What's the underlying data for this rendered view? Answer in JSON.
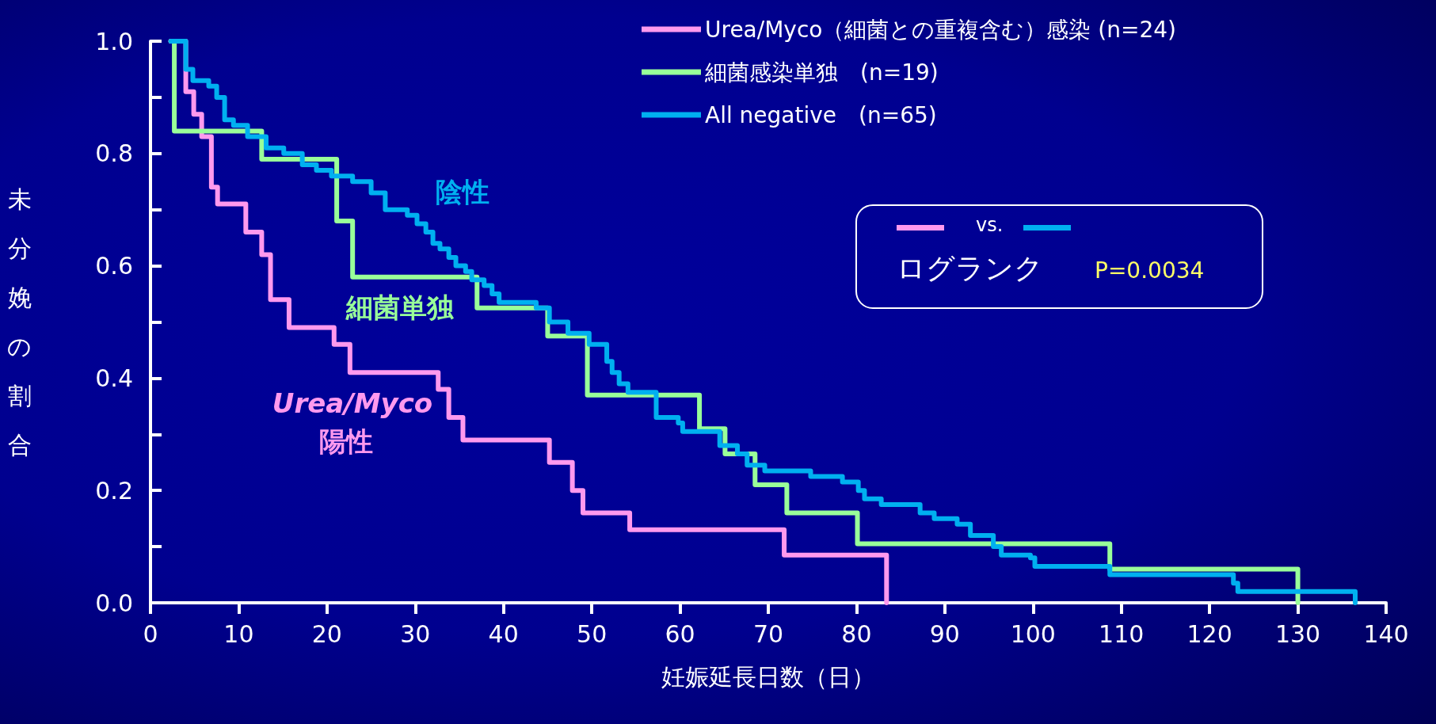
{
  "chart_data": {
    "type": "step",
    "xlabel": "妊娠延長日数（日）",
    "ylabel": "未分娩の割合",
    "xlim": [
      0,
      140
    ],
    "xticks": [
      0,
      10,
      20,
      30,
      40,
      50,
      60,
      70,
      80,
      90,
      100,
      110,
      120,
      130,
      140
    ],
    "ylim": [
      0,
      1
    ],
    "yticks": [
      {
        "value": 0,
        "label": "0.0"
      },
      {
        "value": 0.1,
        "label": null
      },
      {
        "value": 0.2,
        "label": "0.2"
      },
      {
        "value": 0.3,
        "label": null
      },
      {
        "value": 0.4,
        "label": "0.4"
      },
      {
        "value": 0.5,
        "label": null
      },
      {
        "value": 0.6,
        "label": "0.6"
      },
      {
        "value": 0.7,
        "label": null
      },
      {
        "value": 0.8,
        "label": "0.8"
      },
      {
        "value": 0.9,
        "label": null
      },
      {
        "value": 1,
        "label": "1.0"
      }
    ],
    "grid": false,
    "legend": "top right",
    "marker": "none",
    "line_style": "solid",
    "series": [
      {
        "name": "Urea/Myco（細菌との重複含む）感染 (n=24)",
        "color": "#ff99ee",
        "x": [
          2.3,
          4.0,
          4.9,
          5.8,
          6.9,
          7.6,
          10.8,
          12.6,
          13.6,
          15.7,
          20.8,
          22.6,
          32.6,
          33.8,
          35.4,
          45.2,
          47.8,
          49.0,
          54.3,
          71.8,
          83.4
        ],
        "values": [
          1.0,
          0.91,
          0.87,
          0.83,
          0.74,
          0.71,
          0.66,
          0.62,
          0.54,
          0.49,
          0.46,
          0.41,
          0.38,
          0.33,
          0.29,
          0.25,
          0.2,
          0.16,
          0.13,
          0.085,
          0
        ]
      },
      {
        "name": "細菌感染単独　(n=19)",
        "color": "#99ff99",
        "x": [
          2.3,
          2.7,
          12.6,
          21.1,
          22.9,
          37.0,
          45.0,
          49.5,
          62.2,
          65.1,
          68.5,
          72.1,
          80.1,
          108.7,
          130.0
        ],
        "values": [
          1.0,
          0.84,
          0.79,
          0.68,
          0.58,
          0.525,
          0.475,
          0.37,
          0.31,
          0.265,
          0.21,
          0.16,
          0.105,
          0.06,
          0
        ]
      },
      {
        "name": "All negative　(n=65)",
        "color": "#00b0f0",
        "x": [
          2.3,
          4.0,
          4.8,
          6.6,
          7.5,
          8.4,
          9.4,
          11.0,
          13.1,
          15.1,
          17.2,
          18.8,
          20.5,
          22.9,
          25.0,
          26.6,
          29.1,
          30.2,
          31.2,
          32.0,
          32.8,
          33.8,
          34.6,
          35.7,
          36.4,
          37.8,
          38.7,
          39.5,
          43.7,
          45.2,
          47.3,
          49.7,
          51.7,
          52.3,
          53.1,
          54.1,
          57.3,
          59.8,
          60.3,
          64.5,
          66.5,
          67.6,
          69.6,
          74.8,
          78.4,
          80.2,
          80.9,
          82.8,
          87.2,
          88.8,
          91.4,
          92.9,
          95.5,
          96.4,
          99.7,
          100.2,
          108.7,
          122.7,
          123.2,
          136.5
        ],
        "values": [
          1.0,
          0.95,
          0.93,
          0.92,
          0.9,
          0.86,
          0.85,
          0.83,
          0.81,
          0.8,
          0.78,
          0.77,
          0.76,
          0.75,
          0.73,
          0.7,
          0.69,
          0.675,
          0.66,
          0.64,
          0.63,
          0.615,
          0.6,
          0.59,
          0.575,
          0.565,
          0.55,
          0.535,
          0.525,
          0.5,
          0.48,
          0.46,
          0.43,
          0.41,
          0.39,
          0.375,
          0.33,
          0.32,
          0.305,
          0.28,
          0.265,
          0.245,
          0.235,
          0.225,
          0.215,
          0.2,
          0.185,
          0.175,
          0.16,
          0.15,
          0.14,
          0.12,
          0.1,
          0.085,
          0.08,
          0.065,
          0.05,
          0.035,
          0.02,
          0
        ]
      }
    ],
    "annotations": [
      "陰性",
      "細菌単独",
      "Urea/Myco",
      "陽性",
      "vs.",
      "ログランク",
      "P=0.0034"
    ]
  }
}
